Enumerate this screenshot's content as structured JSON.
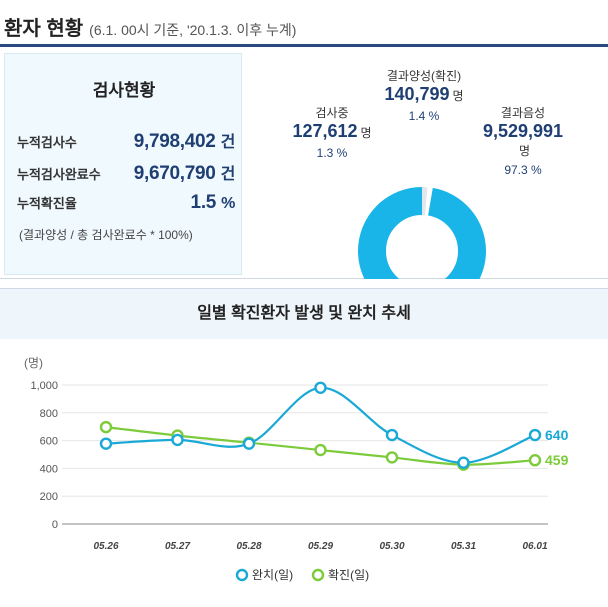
{
  "header": {
    "title": "환자 현황",
    "subtitle": "(6.1. 00시 기준, '20.1.3. 이후 누계)"
  },
  "test_status": {
    "heading": "검사현황",
    "rows": [
      {
        "label": "누적검사수",
        "value": "9,798,402",
        "unit": "건"
      },
      {
        "label": "누적검사완료수",
        "value": "9,670,790",
        "unit": "건"
      },
      {
        "label": "누적확진율",
        "value": "1.5",
        "unit": "%"
      }
    ],
    "note": "(결과양성 / 총 검사완료수 * 100%)"
  },
  "donut": {
    "colors": {
      "negative": "#1ab5e8",
      "positive": "#e3e7ec",
      "testing": "#ffffff"
    },
    "segments": [
      {
        "key": "positive",
        "title": "결과양성(확진)",
        "value": "140,799",
        "unit": "명",
        "pct": "1.4 %",
        "share": 0.014
      },
      {
        "key": "testing",
        "title": "검사중",
        "value": "127,612",
        "unit": "명",
        "pct": "1.3 %",
        "share": 0.013
      },
      {
        "key": "negative",
        "title": "결과음성",
        "value": "9,529,991",
        "unit": "명",
        "pct": "97.3 %",
        "share": 0.973
      }
    ]
  },
  "chart_data": {
    "type": "line",
    "title": "일별 확진환자 발생 및 완치 추세",
    "ylabel": "(명)",
    "ylim": [
      0,
      1000
    ],
    "yticks": [
      0,
      200,
      400,
      600,
      800,
      1000
    ],
    "ytick_labels": [
      "0",
      "200",
      "400",
      "600",
      "800",
      "1,000"
    ],
    "categories": [
      "05.26",
      "05.27",
      "05.28",
      "05.29",
      "05.30",
      "05.31",
      "06.01"
    ],
    "series": [
      {
        "name": "완치(일)",
        "color": "#1aa8d6",
        "values": [
          578,
          605,
          578,
          980,
          640,
          441,
          640
        ],
        "end_label": "640"
      },
      {
        "name": "확진(일)",
        "color": "#7ccb3a",
        "values": [
          697,
          636,
          585,
          532,
          479,
          427,
          459
        ],
        "end_label": "459"
      }
    ],
    "legend_position": "bottom"
  }
}
